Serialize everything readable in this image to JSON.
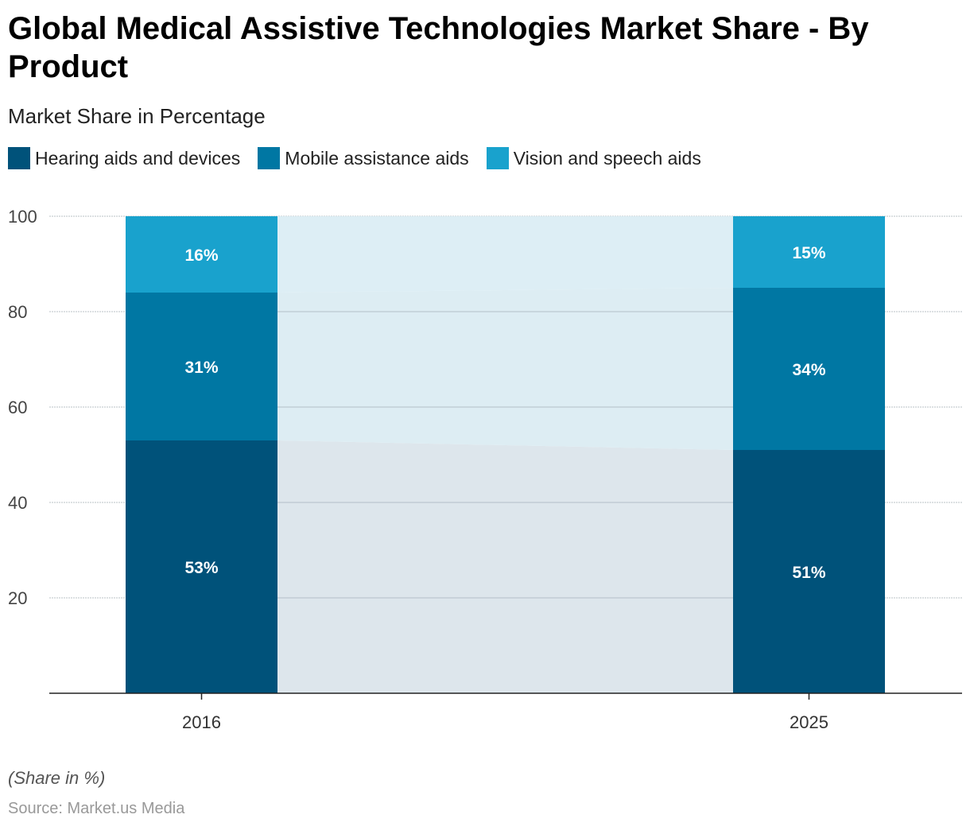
{
  "header": {
    "title": "Global Medical Assistive Technologies Market Share - By Product",
    "subtitle": "Market Share in Percentage"
  },
  "footer": {
    "note": "(Share in %)",
    "source": "Source: Market.us Media"
  },
  "colors": {
    "hearing": "#00527a",
    "mobile": "#0077a3",
    "vision": "#19a2cd",
    "band_lower": "#d9e3ea",
    "band_middle": "#d9ebf2",
    "band_upper": "#d9ecf4"
  },
  "chart_data": {
    "type": "bar",
    "stacked": true,
    "categories": [
      "2016",
      "2025"
    ],
    "series": [
      {
        "name": "Hearing aids and devices",
        "values": [
          53,
          51
        ],
        "labels": [
          "53%",
          "51%"
        ],
        "color": "#00527a"
      },
      {
        "name": "Mobile assistance aids",
        "values": [
          31,
          34
        ],
        "labels": [
          "31%",
          "34%"
        ],
        "color": "#0077a3"
      },
      {
        "name": "Vision and speech aids",
        "values": [
          16,
          15
        ],
        "labels": [
          "16%",
          "15%"
        ],
        "color": "#19a2cd"
      }
    ],
    "ylim": [
      0,
      100
    ],
    "yticks": [
      20,
      40,
      60,
      80,
      100
    ],
    "grid": true,
    "legend": "top-left"
  }
}
